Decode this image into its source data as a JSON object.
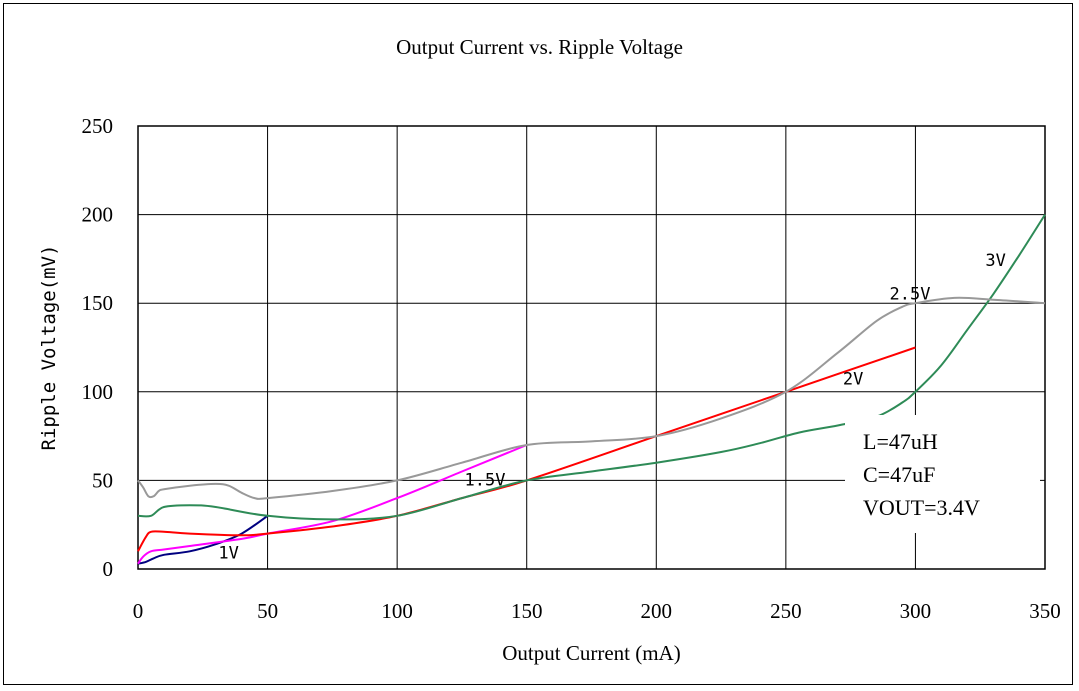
{
  "chart_data": {
    "type": "line",
    "title": "Output Current vs. Ripple Voltage",
    "xlabel": "Output Current (mA)",
    "ylabel": "Ripple Voltage(mV)",
    "xlim": [
      0,
      350
    ],
    "ylim": [
      0,
      250
    ],
    "xticks": [
      "0",
      "50",
      "100",
      "150",
      "200",
      "250",
      "300",
      "350"
    ],
    "yticks": [
      "0",
      "50",
      "100",
      "150",
      "200",
      "250"
    ],
    "grid": true,
    "annotations": [
      "L=47uH",
      "C=47uF",
      "VOUT=3.4V"
    ],
    "series": [
      {
        "name": "1V",
        "color": "#000080",
        "points": [
          [
            0,
            3
          ],
          [
            3,
            4
          ],
          [
            6,
            6
          ],
          [
            10,
            8
          ],
          [
            20,
            10
          ],
          [
            30,
            14
          ],
          [
            40,
            20
          ],
          [
            50,
            30
          ]
        ]
      },
      {
        "name": "1.5V",
        "color": "#ff00ff",
        "points": [
          [
            0,
            3
          ],
          [
            2,
            7
          ],
          [
            5,
            10
          ],
          [
            10,
            11
          ],
          [
            20,
            13
          ],
          [
            40,
            17
          ],
          [
            50,
            20
          ],
          [
            75,
            27
          ],
          [
            100,
            40
          ],
          [
            125,
            55
          ],
          [
            150,
            70
          ]
        ]
      },
      {
        "name": "",
        "color": "#ff0000",
        "points": [
          [
            0,
            10
          ],
          [
            3,
            18
          ],
          [
            5,
            21
          ],
          [
            10,
            21
          ],
          [
            20,
            20
          ],
          [
            40,
            19
          ],
          [
            50,
            20
          ],
          [
            75,
            24
          ],
          [
            100,
            30
          ],
          [
            125,
            40
          ],
          [
            150,
            50
          ],
          [
            200,
            75
          ],
          [
            250,
            100
          ],
          [
            300,
            125
          ]
        ]
      },
      {
        "name": "2V",
        "color": "#2e8b57",
        "points": [
          [
            0,
            30
          ],
          [
            5,
            30
          ],
          [
            10,
            35
          ],
          [
            20,
            36
          ],
          [
            30,
            35
          ],
          [
            50,
            30
          ],
          [
            75,
            28
          ],
          [
            100,
            30
          ],
          [
            125,
            40
          ],
          [
            150,
            50
          ],
          [
            175,
            55
          ],
          [
            200,
            60
          ],
          [
            225,
            66
          ],
          [
            240,
            71
          ],
          [
            255,
            77
          ],
          [
            270,
            81
          ],
          [
            285,
            86
          ],
          [
            295,
            94
          ],
          [
            300,
            100
          ],
          [
            310,
            115
          ],
          [
            320,
            135
          ],
          [
            330,
            155
          ],
          [
            340,
            177
          ],
          [
            350,
            200
          ]
        ]
      },
      {
        "name": "2.5V",
        "color": "#999999",
        "points": [
          [
            0,
            50
          ],
          [
            2,
            46
          ],
          [
            4,
            41
          ],
          [
            6,
            41
          ],
          [
            8,
            44
          ],
          [
            10,
            45
          ],
          [
            20,
            47
          ],
          [
            30,
            48
          ],
          [
            35,
            47
          ],
          [
            40,
            43
          ],
          [
            45,
            40
          ],
          [
            50,
            40
          ],
          [
            75,
            44
          ],
          [
            100,
            50
          ],
          [
            125,
            60
          ],
          [
            150,
            70
          ],
          [
            175,
            72
          ],
          [
            200,
            75
          ],
          [
            225,
            85
          ],
          [
            250,
            100
          ],
          [
            270,
            122
          ],
          [
            285,
            140
          ],
          [
            295,
            148
          ],
          [
            300,
            150
          ],
          [
            315,
            153
          ],
          [
            330,
            152
          ],
          [
            350,
            150
          ]
        ]
      }
    ],
    "series_labels": [
      {
        "text": "1V",
        "x": 31,
        "y": 6
      },
      {
        "text": "1.5V",
        "x": 126,
        "y": 47
      },
      {
        "text": "2V",
        "x": 272,
        "y": 104
      },
      {
        "text": "2.5V",
        "x": 290,
        "y": 152
      },
      {
        "text": "3V",
        "x": 327,
        "y": 171
      }
    ]
  }
}
